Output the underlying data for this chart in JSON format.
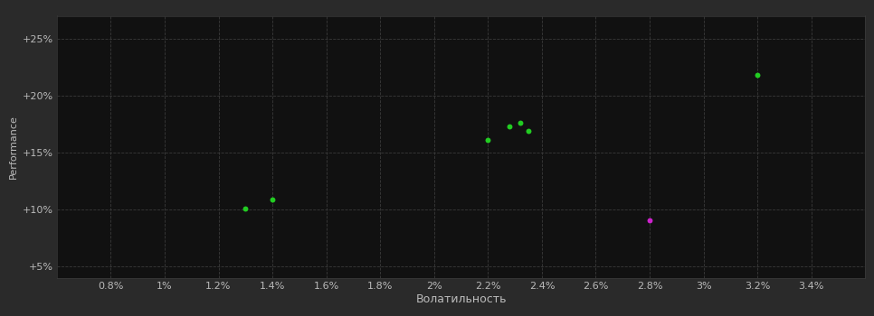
{
  "background_color": "#1e1e1e",
  "plot_bg_color": "#111111",
  "outer_bg_color": "#2a2a2a",
  "grid_color": "#3a3a3a",
  "text_color": "#bbbbbb",
  "xlabel": "Волатильность",
  "ylabel": "Performance",
  "xlim": [
    0.006,
    0.036
  ],
  "ylim": [
    0.04,
    0.27
  ],
  "xticks": [
    0.008,
    0.01,
    0.012,
    0.014,
    0.016,
    0.018,
    0.02,
    0.022,
    0.024,
    0.026,
    0.028,
    0.03,
    0.032,
    0.034
  ],
  "xtick_labels": [
    "0.8%",
    "1%",
    "1.2%",
    "1.4%",
    "1.6%",
    "1.8%",
    "2%",
    "2.2%",
    "2.4%",
    "2.6%",
    "2.8%",
    "3%",
    "3.2%",
    "3.4%"
  ],
  "yticks": [
    0.05,
    0.1,
    0.15,
    0.2,
    0.25
  ],
  "ytick_labels": [
    "+5%",
    "+10%",
    "+15%",
    "+20%",
    "+25%"
  ],
  "green_points": [
    [
      0.013,
      0.101
    ],
    [
      0.014,
      0.109
    ],
    [
      0.022,
      0.161
    ],
    [
      0.0228,
      0.173
    ],
    [
      0.0232,
      0.176
    ],
    [
      0.0235,
      0.169
    ],
    [
      0.032,
      0.218
    ]
  ],
  "magenta_points": [
    [
      0.028,
      0.091
    ]
  ],
  "green_color": "#22cc22",
  "magenta_color": "#cc22cc",
  "point_size": 18,
  "font_size_ticks": 8,
  "font_size_label": 9,
  "font_size_ylabel": 8
}
